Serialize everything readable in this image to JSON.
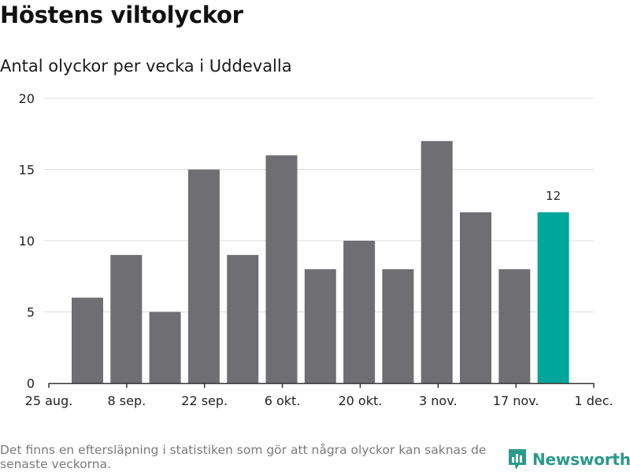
{
  "header": {
    "title": "Höstens viltolyckor",
    "subtitle": "Antal olyckor per vecka i Uddevalla"
  },
  "chart_data": {
    "type": "bar",
    "title": "Höstens viltolyckor",
    "subtitle": "Antal olyckor per vecka i Uddevalla",
    "xlabel": "",
    "ylabel": "",
    "ylim": [
      0,
      20
    ],
    "yticks": [
      0,
      5,
      10,
      15,
      20
    ],
    "grid": true,
    "x_tick_labels": [
      "25 aug.",
      "8 sep.",
      "22 sep.",
      "6 okt.",
      "20 okt.",
      "3 nov.",
      "17 nov.",
      "1 dec."
    ],
    "values": [
      6,
      9,
      5,
      15,
      9,
      16,
      8,
      10,
      8,
      17,
      12,
      8,
      12
    ],
    "highlight_index": 12,
    "highlight_label": "12",
    "colors": {
      "bar": "#6f6e73",
      "highlight": "#00a699",
      "grid": "#dddddd",
      "axis": "#333333"
    }
  },
  "footer": {
    "note": "Det finns en eftersläpning i statistiken som gör att några olyckor kan saknas de senaste veckorna.",
    "brand": "Newsworthy",
    "brand_icon": "newsworthy-logo-icon",
    "brand_color": "#2a9a8a"
  }
}
